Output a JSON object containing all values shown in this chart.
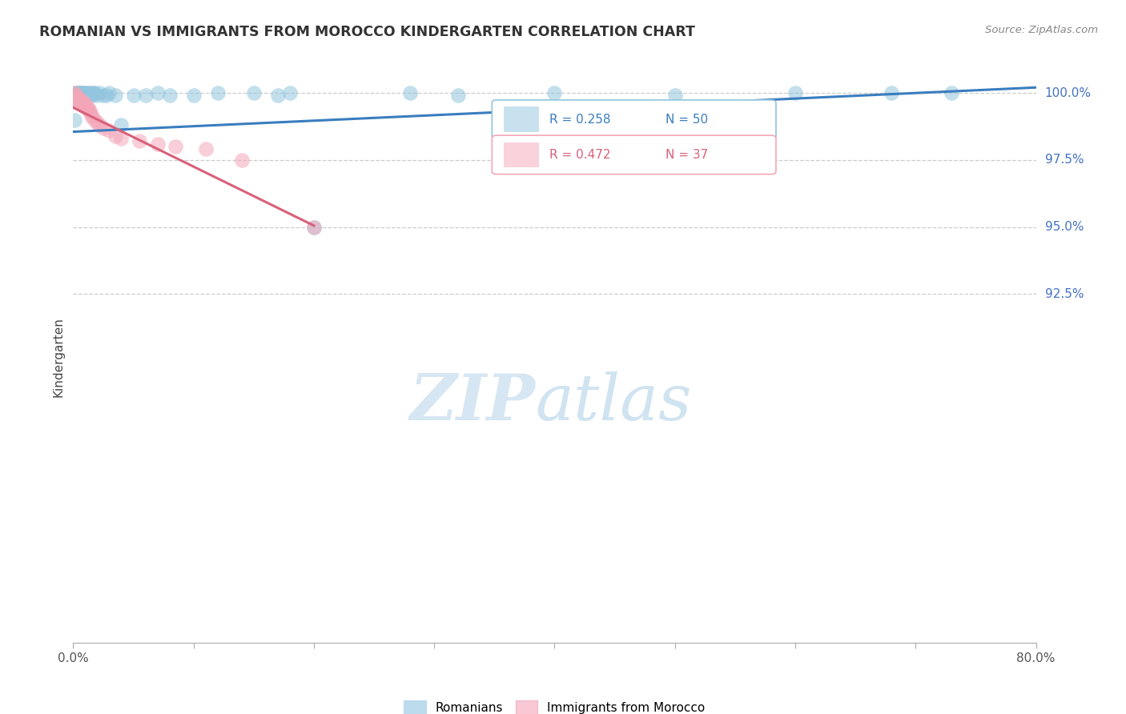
{
  "title": "ROMANIAN VS IMMIGRANTS FROM MOROCCO KINDERGARTEN CORRELATION CHART",
  "source": "Source: ZipAtlas.com",
  "ylabel": "Kindergarten",
  "ylabel_right_labels": [
    "100.0%",
    "97.5%",
    "95.0%",
    "92.5%"
  ],
  "ylabel_right_values": [
    1.0,
    0.975,
    0.95,
    0.925
  ],
  "x_min": 0.0,
  "x_max": 0.8,
  "y_min": 0.795,
  "y_max": 1.008,
  "legend_blue_r": "R = 0.258",
  "legend_blue_n": "N = 50",
  "legend_pink_r": "R = 0.472",
  "legend_pink_n": "N = 37",
  "watermark_zip": "ZIP",
  "watermark_atlas": "atlas",
  "blue_color": "#92c5de",
  "pink_color": "#f4a6b8",
  "blue_line_color": "#3a7dbf",
  "pink_line_color": "#d9607a",
  "blue_scatter": {
    "x": [
      0.001,
      0.002,
      0.002,
      0.003,
      0.003,
      0.004,
      0.004,
      0.005,
      0.005,
      0.006,
      0.006,
      0.007,
      0.007,
      0.008,
      0.008,
      0.009,
      0.01,
      0.01,
      0.011,
      0.012,
      0.013,
      0.014,
      0.015,
      0.016,
      0.017,
      0.018,
      0.02,
      0.022,
      0.025,
      0.028,
      0.03,
      0.035,
      0.04,
      0.05,
      0.06,
      0.07,
      0.08,
      0.1,
      0.12,
      0.15,
      0.17,
      0.18,
      0.2,
      0.28,
      0.32,
      0.4,
      0.5,
      0.6,
      0.68,
      0.73
    ],
    "y": [
      0.99,
      0.999,
      1.0,
      0.999,
      1.0,
      0.998,
      1.0,
      0.999,
      1.0,
      0.999,
      1.0,
      0.999,
      1.0,
      0.999,
      1.0,
      1.0,
      0.999,
      1.0,
      0.999,
      1.0,
      1.0,
      0.999,
      1.0,
      0.999,
      1.0,
      1.0,
      0.999,
      1.0,
      0.999,
      0.999,
      1.0,
      0.999,
      0.988,
      0.999,
      0.999,
      1.0,
      0.999,
      0.999,
      1.0,
      1.0,
      0.999,
      1.0,
      0.95,
      1.0,
      0.999,
      1.0,
      0.999,
      1.0,
      1.0,
      1.0
    ]
  },
  "pink_scatter": {
    "x": [
      0.001,
      0.001,
      0.001,
      0.002,
      0.002,
      0.003,
      0.003,
      0.004,
      0.004,
      0.005,
      0.005,
      0.006,
      0.006,
      0.007,
      0.007,
      0.008,
      0.009,
      0.01,
      0.011,
      0.012,
      0.013,
      0.014,
      0.015,
      0.016,
      0.018,
      0.02,
      0.022,
      0.025,
      0.03,
      0.035,
      0.04,
      0.055,
      0.07,
      0.085,
      0.11,
      0.14,
      0.2
    ],
    "y": [
      0.999,
      1.0,
      0.998,
      0.999,
      0.998,
      0.998,
      0.997,
      0.998,
      0.997,
      0.997,
      0.998,
      0.997,
      0.996,
      0.996,
      0.997,
      0.996,
      0.995,
      0.996,
      0.995,
      0.994,
      0.994,
      0.993,
      0.992,
      0.991,
      0.99,
      0.989,
      0.988,
      0.987,
      0.986,
      0.984,
      0.983,
      0.982,
      0.981,
      0.98,
      0.979,
      0.975,
      0.95
    ]
  },
  "blue_trend_x": [
    0.0,
    0.8
  ],
  "blue_trend_y": [
    0.9855,
    1.002
  ],
  "pink_trend_x": [
    0.0,
    0.2
  ],
  "pink_trend_y": [
    0.9945,
    0.9505
  ]
}
